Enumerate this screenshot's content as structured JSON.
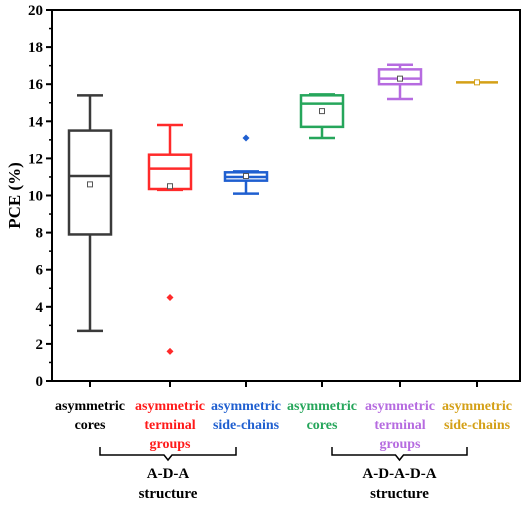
{
  "chart_data": {
    "type": "box",
    "ylabel": "PCE (%)",
    "ylim": [
      0,
      20
    ],
    "yticks": [
      0,
      2,
      4,
      6,
      8,
      10,
      12,
      14,
      16,
      18,
      20
    ],
    "categories": [
      {
        "lines": [
          "asymmetric",
          "cores"
        ],
        "color": "#000000"
      },
      {
        "lines": [
          "asymmetric",
          "terminal",
          "groups"
        ],
        "color": "#ff1a1a"
      },
      {
        "lines": [
          "asymmetric",
          "side-chains"
        ],
        "color": "#1f5fd0"
      },
      {
        "lines": [
          "asymmetric",
          "cores"
        ],
        "color": "#26a65b"
      },
      {
        "lines": [
          "asymmetric",
          "terminal",
          "groups"
        ],
        "color": "#b66be0"
      },
      {
        "lines": [
          "asymmetric",
          "side-chains"
        ],
        "color": "#d4a017"
      }
    ],
    "series": [
      {
        "color": "#3a3a3a",
        "whisker_low": 2.7,
        "q1": 7.9,
        "median": 11.05,
        "q3": 13.5,
        "whisker_high": 15.4,
        "mean": 10.6,
        "outliers": []
      },
      {
        "color": "#ff2a2a",
        "whisker_low": 10.3,
        "q1": 10.35,
        "median": 11.45,
        "q3": 12.2,
        "whisker_high": 13.8,
        "mean": 10.5,
        "outliers": [
          4.5,
          1.6
        ]
      },
      {
        "color": "#1f5fd0",
        "whisker_low": 10.1,
        "q1": 10.8,
        "median": 11.0,
        "q3": 11.25,
        "whisker_high": 11.3,
        "mean": 11.05,
        "outliers": [
          13.1
        ]
      },
      {
        "color": "#26a65b",
        "whisker_low": 13.1,
        "q1": 13.7,
        "median": 14.95,
        "q3": 15.4,
        "whisker_high": 15.45,
        "mean": 14.55,
        "outliers": []
      },
      {
        "color": "#b66be0",
        "whisker_low": 15.2,
        "q1": 16.0,
        "median": 16.3,
        "q3": 16.8,
        "whisker_high": 17.05,
        "mean": 16.3,
        "outliers": []
      },
      {
        "color": "#d4a017",
        "whisker_low": 16.1,
        "q1": 16.1,
        "median": 16.1,
        "q3": 16.1,
        "whisker_high": 16.1,
        "mean": 16.1,
        "outliers": []
      }
    ],
    "groups": [
      {
        "lines": [
          "A-D-A",
          "structure"
        ],
        "from": 0,
        "to": 2
      },
      {
        "lines": [
          "A-D-A-D-A",
          "structure"
        ],
        "from": 3,
        "to": 5
      }
    ]
  }
}
